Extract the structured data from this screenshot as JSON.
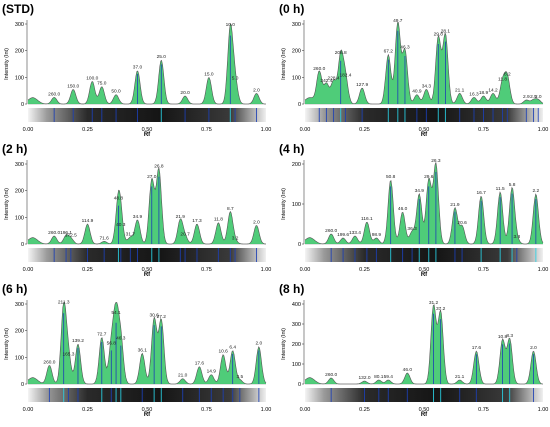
{
  "colors": {
    "fill": "#3cc76a",
    "fill_light": "#8ee39e",
    "outline": "#555555",
    "cyan": "#29d4e6",
    "blue": "#1c3fb5"
  },
  "x_axis_label": "Rf",
  "chart_data": [
    {
      "type": "area",
      "title": "(STD)",
      "ylabel": "Intensity (Int)",
      "xlabel": "Rf",
      "ylim": [
        0,
        300
      ],
      "yticks": [
        0,
        100,
        200,
        300
      ],
      "xlim": [
        0,
        1
      ],
      "xticks": [
        "0.00",
        "0.25",
        "0.50",
        "0.75",
        "1.00"
      ],
      "peaks": [
        {
          "rf": 0.11,
          "h": 25,
          "label": "260.0"
        },
        {
          "rf": 0.19,
          "h": 55,
          "label": "150.0"
        },
        {
          "rf": 0.27,
          "h": 85,
          "label": "100.0"
        },
        {
          "rf": 0.31,
          "h": 65,
          "label": "75.0"
        },
        {
          "rf": 0.37,
          "h": 35,
          "label": "50.0"
        },
        {
          "rf": 0.46,
          "h": 125,
          "label": "37.0"
        },
        {
          "rf": 0.56,
          "h": 165,
          "label": "25.0"
        },
        {
          "rf": 0.66,
          "h": 30,
          "label": "20.0"
        },
        {
          "rf": 0.76,
          "h": 100,
          "label": "15.0"
        },
        {
          "rf": 0.85,
          "h": 285,
          "label": "10.0"
        },
        {
          "rf": 0.87,
          "h": 85,
          "label": "5.0"
        },
        {
          "rf": 0.96,
          "h": 40,
          "label": "2.0"
        }
      ]
    },
    {
      "type": "area",
      "title": "(0 h)",
      "ylabel": "Intensity (Int)",
      "xlabel": "Rf",
      "ylim": [
        0,
        300
      ],
      "yticks": [
        0,
        100,
        200,
        300
      ],
      "xlim": [
        0,
        1
      ],
      "xticks": [
        "0.00",
        "0.25",
        "0.50",
        "0.75",
        "1.00"
      ],
      "peaks": [
        {
          "rf": 0.06,
          "h": 120,
          "label": "260.0"
        },
        {
          "rf": 0.09,
          "h": 75,
          "label": "242.4"
        },
        {
          "rf": 0.12,
          "h": 85,
          "label": "228.4"
        },
        {
          "rf": 0.15,
          "h": 180,
          "label": "208.8"
        },
        {
          "rf": 0.17,
          "h": 95,
          "label": "182.4"
        },
        {
          "rf": 0.24,
          "h": 60,
          "label": "127.9"
        },
        {
          "rf": 0.35,
          "h": 185,
          "label": "67.2"
        },
        {
          "rf": 0.39,
          "h": 305,
          "label": "49.7"
        },
        {
          "rf": 0.42,
          "h": 200,
          "label": "46.3"
        },
        {
          "rf": 0.47,
          "h": 35,
          "label": "40.9"
        },
        {
          "rf": 0.51,
          "h": 55,
          "label": "34.3"
        },
        {
          "rf": 0.56,
          "h": 250,
          "label": "29.8"
        },
        {
          "rf": 0.59,
          "h": 260,
          "label": "28.1"
        },
        {
          "rf": 0.65,
          "h": 40,
          "label": "21.1"
        },
        {
          "rf": 0.71,
          "h": 25,
          "label": "16.3"
        },
        {
          "rf": 0.75,
          "h": 30,
          "label": "18.9"
        },
        {
          "rf": 0.79,
          "h": 40,
          "label": "14.2"
        },
        {
          "rf": 0.83,
          "h": 80,
          "label": "11.8"
        },
        {
          "rf": 0.85,
          "h": 100,
          "label": "8.2"
        },
        {
          "rf": 0.93,
          "h": 15,
          "label": "2.9"
        },
        {
          "rf": 0.96,
          "h": 15,
          "label": "2.5"
        },
        {
          "rf": 0.98,
          "h": 15,
          "label": "2.0"
        }
      ]
    },
    {
      "type": "area",
      "title": "(2 h)",
      "ylabel": "Intensity (Int)",
      "xlabel": "Rf",
      "ylim": [
        0,
        300
      ],
      "yticks": [
        0,
        100,
        200,
        300
      ],
      "xlim": [
        0,
        1
      ],
      "xticks": [
        "0.00",
        "0.25",
        "0.50",
        "0.75",
        "1.00"
      ],
      "peaks": [
        {
          "rf": 0.11,
          "h": 30,
          "label": "260.0"
        },
        {
          "rf": 0.16,
          "h": 30,
          "label": "196.1"
        },
        {
          "rf": 0.18,
          "h": 20,
          "label": "172.5"
        },
        {
          "rf": 0.25,
          "h": 75,
          "label": "114.9"
        },
        {
          "rf": 0.32,
          "h": 10,
          "label": "71.6"
        },
        {
          "rf": 0.38,
          "h": 160,
          "label": "48.8"
        },
        {
          "rf": 0.39,
          "h": 60,
          "label": "40.3"
        },
        {
          "rf": 0.43,
          "h": 25,
          "label": "31.7"
        },
        {
          "rf": 0.46,
          "h": 90,
          "label": "34.9"
        },
        {
          "rf": 0.52,
          "h": 240,
          "label": "27.0"
        },
        {
          "rf": 0.55,
          "h": 280,
          "label": "26.8"
        },
        {
          "rf": 0.64,
          "h": 90,
          "label": "21.9"
        },
        {
          "rf": 0.66,
          "h": 25,
          "label": "20.7"
        },
        {
          "rf": 0.71,
          "h": 75,
          "label": "17.3"
        },
        {
          "rf": 0.8,
          "h": 80,
          "label": "11.8"
        },
        {
          "rf": 0.85,
          "h": 120,
          "label": "8.7"
        },
        {
          "rf": 0.87,
          "h": 10,
          "label": "3.2"
        },
        {
          "rf": 0.96,
          "h": 70,
          "label": "2.0"
        }
      ]
    },
    {
      "type": "area",
      "title": "(4 h)",
      "ylabel": "Intensity (Int)",
      "xlabel": "Rf",
      "ylim": [
        0,
        200
      ],
      "yticks": [
        0,
        100,
        200
      ],
      "xlim": [
        0,
        1
      ],
      "xticks": [
        "0.00",
        "0.25",
        "0.50",
        "0.75",
        "1.00"
      ],
      "peaks": [
        {
          "rf": 0.11,
          "h": 25,
          "label": "260.0"
        },
        {
          "rf": 0.16,
          "h": 15,
          "label": "199.6"
        },
        {
          "rf": 0.21,
          "h": 20,
          "label": "133.4"
        },
        {
          "rf": 0.26,
          "h": 55,
          "label": "116.1"
        },
        {
          "rf": 0.3,
          "h": 15,
          "label": "98.9"
        },
        {
          "rf": 0.36,
          "h": 160,
          "label": "50.8"
        },
        {
          "rf": 0.41,
          "h": 80,
          "label": "46.0"
        },
        {
          "rf": 0.45,
          "h": 30,
          "label": "36.3"
        },
        {
          "rf": 0.48,
          "h": 125,
          "label": "34.9"
        },
        {
          "rf": 0.52,
          "h": 160,
          "label": "29.6"
        },
        {
          "rf": 0.55,
          "h": 200,
          "label": "26.3"
        },
        {
          "rf": 0.63,
          "h": 90,
          "label": "21.9"
        },
        {
          "rf": 0.66,
          "h": 45,
          "label": "20.6"
        },
        {
          "rf": 0.74,
          "h": 120,
          "label": "16.7"
        },
        {
          "rf": 0.82,
          "h": 130,
          "label": "11.5"
        },
        {
          "rf": 0.87,
          "h": 140,
          "label": "5.8"
        },
        {
          "rf": 0.89,
          "h": 10,
          "label": "3.8"
        },
        {
          "rf": 0.97,
          "h": 125,
          "label": "2.2"
        }
      ]
    },
    {
      "type": "area",
      "title": "(6 h)",
      "ylabel": "Intensity (Int)",
      "xlabel": "Rf",
      "ylim": [
        0,
        300
      ],
      "yticks": [
        0,
        100,
        200,
        300
      ],
      "xlim": [
        0,
        1
      ],
      "xticks": [
        "0.00",
        "0.25",
        "0.50",
        "0.75",
        "1.00"
      ],
      "peaks": [
        {
          "rf": 0.09,
          "h": 70,
          "label": "260.0"
        },
        {
          "rf": 0.15,
          "h": 295,
          "label": "211.3"
        },
        {
          "rf": 0.17,
          "h": 100,
          "label": "165.3"
        },
        {
          "rf": 0.21,
          "h": 150,
          "label": "139.2"
        },
        {
          "rf": 0.31,
          "h": 175,
          "label": "72.7"
        },
        {
          "rf": 0.35,
          "h": 140,
          "label": "56.8"
        },
        {
          "rf": 0.37,
          "h": 255,
          "label": "54.1"
        },
        {
          "rf": 0.39,
          "h": 160,
          "label": "46.3"
        },
        {
          "rf": 0.48,
          "h": 115,
          "label": "36.1"
        },
        {
          "rf": 0.53,
          "h": 245,
          "label": "30.6"
        },
        {
          "rf": 0.56,
          "h": 240,
          "label": "27.2"
        },
        {
          "rf": 0.65,
          "h": 20,
          "label": "21.0"
        },
        {
          "rf": 0.72,
          "h": 65,
          "label": "17.6"
        },
        {
          "rf": 0.77,
          "h": 35,
          "label": "14.9"
        },
        {
          "rf": 0.82,
          "h": 110,
          "label": "10.6"
        },
        {
          "rf": 0.86,
          "h": 125,
          "label": "6.4"
        },
        {
          "rf": 0.89,
          "h": 15,
          "label": "3.5"
        },
        {
          "rf": 0.97,
          "h": 140,
          "label": "2.0"
        }
      ]
    },
    {
      "type": "area",
      "title": "(8 h)",
      "ylabel": "Intensity (Int)",
      "xlabel": "Rf",
      "ylim": [
        0,
        400
      ],
      "yticks": [
        0,
        100,
        200,
        300,
        400
      ],
      "xlim": [
        0,
        1
      ],
      "xticks": [
        "0.00",
        "0.25",
        "0.50",
        "0.75",
        "1.00"
      ],
      "peaks": [
        {
          "rf": 0.11,
          "h": 30,
          "label": "260.0"
        },
        {
          "rf": 0.25,
          "h": 15,
          "label": "132.0"
        },
        {
          "rf": 0.31,
          "h": 20,
          "label": "80.1"
        },
        {
          "rf": 0.35,
          "h": 20,
          "label": "59.4"
        },
        {
          "rf": 0.43,
          "h": 55,
          "label": "46.0"
        },
        {
          "rf": 0.54,
          "h": 390,
          "label": "31.2"
        },
        {
          "rf": 0.57,
          "h": 360,
          "label": "37.2"
        },
        {
          "rf": 0.65,
          "h": 20,
          "label": "21.1"
        },
        {
          "rf": 0.72,
          "h": 165,
          "label": "17.6"
        },
        {
          "rf": 0.83,
          "h": 220,
          "label": "10.8"
        },
        {
          "rf": 0.86,
          "h": 225,
          "label": "8.3"
        },
        {
          "rf": 0.96,
          "h": 165,
          "label": "2.0"
        }
      ]
    }
  ]
}
